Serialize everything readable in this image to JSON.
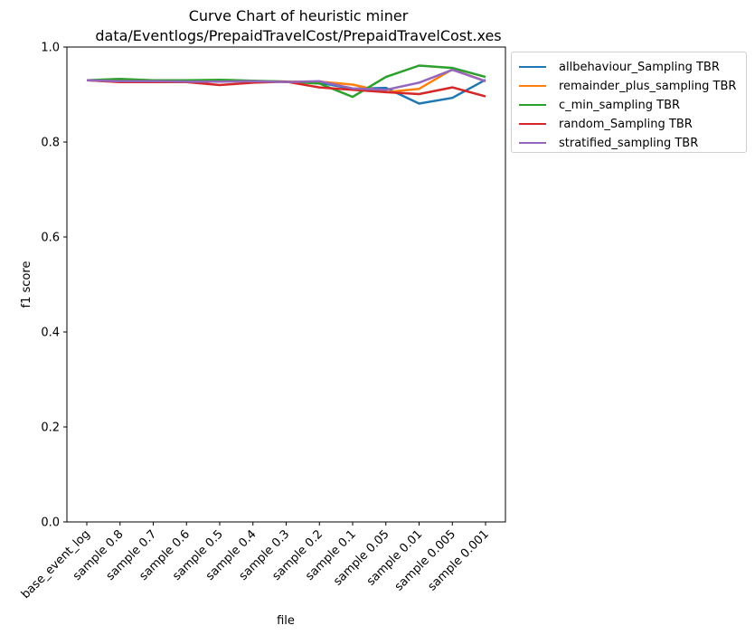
{
  "chart_data": {
    "type": "line",
    "title": "Curve Chart of heuristic miner",
    "subtitle": "data/Eventlogs/PrepaidTravelCost/PrepaidTravelCost.xes",
    "xlabel": "file",
    "ylabel": "f1 score",
    "ylim": [
      0.0,
      1.0
    ],
    "yticks": [
      "0.0",
      "0.2",
      "0.4",
      "0.6",
      "0.8",
      "1.0"
    ],
    "categories": [
      "base_event_log",
      "sample 0.8",
      "sample 0.7",
      "sample 0.6",
      "sample 0.5",
      "sample 0.4",
      "sample 0.3",
      "sample 0.2",
      "sample 0.1",
      "sample 0.05",
      "sample 0.01",
      "sample 0.005",
      "sample 0.001"
    ],
    "grid": false,
    "legend_position": "outside-top-right",
    "series": [
      {
        "name": "allbehaviour_Sampling TBR",
        "color": "#1f77b4",
        "values": [
          0.93,
          0.93,
          0.929,
          0.928,
          0.928,
          0.928,
          0.927,
          0.925,
          0.912,
          0.914,
          0.881,
          0.893,
          0.931
        ]
      },
      {
        "name": "remainder_plus_sampling TBR",
        "color": "#ff7f0e",
        "values": [
          0.93,
          0.929,
          0.929,
          0.928,
          0.928,
          0.928,
          0.927,
          0.927,
          0.921,
          0.905,
          0.912,
          0.953,
          0.928
        ]
      },
      {
        "name": "c_min_sampling TBR",
        "color": "#2ca02c",
        "values": [
          0.93,
          0.933,
          0.93,
          0.93,
          0.931,
          0.929,
          0.927,
          0.923,
          0.895,
          0.937,
          0.961,
          0.956,
          0.937
        ]
      },
      {
        "name": "random_Sampling TBR",
        "color": "#d62728",
        "values": [
          0.93,
          0.926,
          0.926,
          0.926,
          0.92,
          0.925,
          0.927,
          0.915,
          0.91,
          0.905,
          0.901,
          0.915,
          0.896
        ]
      },
      {
        "name": "stratified_sampling TBR",
        "color": "#9467bd",
        "values": [
          0.93,
          0.928,
          0.928,
          0.927,
          0.927,
          0.928,
          0.926,
          0.928,
          0.913,
          0.91,
          0.925,
          0.952,
          0.928
        ]
      }
    ]
  }
}
